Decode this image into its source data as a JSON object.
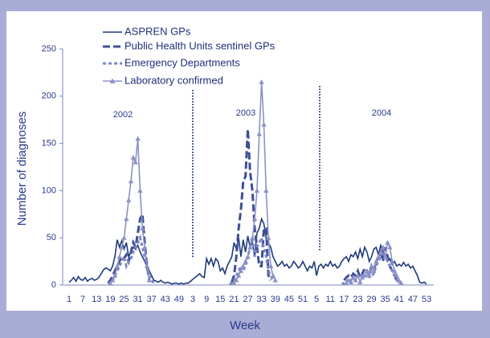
{
  "chart_data": {
    "type": "line",
    "y_label": "Number of diagnoses",
    "x_label": "Week",
    "annotations": [
      "2002",
      "2003",
      "2004"
    ],
    "ylim": [
      0,
      250
    ],
    "yticks": [
      0,
      50,
      100,
      150,
      200,
      250
    ],
    "categories": [
      "1",
      null,
      null,
      null,
      null,
      null,
      "7",
      null,
      null,
      null,
      null,
      null,
      "13",
      null,
      null,
      null,
      null,
      null,
      "19",
      null,
      null,
      null,
      null,
      null,
      "25",
      null,
      null,
      null,
      null,
      null,
      "31",
      null,
      null,
      null,
      null,
      null,
      "37",
      null,
      null,
      null,
      null,
      null,
      "43",
      null,
      null,
      null,
      null,
      null,
      "49",
      null,
      null,
      null,
      null,
      null,
      "3",
      null,
      null,
      null,
      null,
      null,
      "9",
      null,
      null,
      null,
      null,
      null,
      "15",
      null,
      null,
      null,
      null,
      null,
      "21",
      null,
      null,
      null,
      null,
      null,
      "27",
      null,
      null,
      null,
      null,
      null,
      "33",
      null,
      null,
      null,
      null,
      null,
      "39",
      null,
      null,
      null,
      null,
      null,
      "45",
      null,
      null,
      null,
      null,
      null,
      "51",
      null,
      null,
      null,
      null,
      null,
      "5",
      null,
      null,
      null,
      null,
      null,
      "11",
      null,
      null,
      null,
      null,
      null,
      "17",
      null,
      null,
      null,
      null,
      null,
      "23",
      null,
      null,
      null,
      null,
      null,
      "29",
      null,
      null,
      null,
      null,
      null,
      "35",
      null,
      null,
      null,
      null,
      null,
      "41",
      null,
      null,
      null,
      null,
      null,
      "47",
      null,
      null,
      null,
      null,
      null,
      "53"
    ],
    "series": [
      {
        "name": "ASPREN GPs",
        "color": "#1f3a7a",
        "dash": "solid",
        "values": [
          3,
          5,
          8,
          4,
          9,
          6,
          5,
          8,
          4,
          6,
          7,
          5,
          6,
          8,
          12,
          16,
          18,
          17,
          15,
          20,
          30,
          48,
          40,
          47,
          38,
          45,
          30,
          35,
          40,
          38,
          42,
          35,
          30,
          25,
          20,
          15,
          10,
          5,
          4,
          3,
          5,
          3,
          2,
          3,
          2,
          1,
          2,
          2,
          1,
          2,
          1,
          2,
          2,
          4,
          6,
          8,
          10,
          12,
          9,
          8,
          28,
          22,
          28,
          20,
          28,
          25,
          15,
          18,
          12,
          20,
          25,
          30,
          45,
          38,
          50,
          30,
          48,
          35,
          52,
          40,
          45,
          30,
          55,
          60,
          70,
          65,
          50,
          45,
          40,
          30,
          25,
          20,
          22,
          25,
          20,
          22,
          18,
          20,
          25,
          22,
          18,
          20,
          25,
          20,
          15,
          20,
          18,
          25,
          10,
          20,
          22,
          18,
          22,
          20,
          25,
          20,
          22,
          18,
          20,
          25,
          28,
          30,
          25,
          32,
          30,
          35,
          28,
          38,
          30,
          40,
          35,
          25,
          30,
          38,
          40,
          32,
          42,
          35,
          30,
          25,
          28,
          22,
          25,
          20,
          22,
          20,
          24,
          20,
          22,
          18,
          20,
          15,
          10,
          3,
          2,
          3,
          1
        ]
      },
      {
        "name": "Public Health Units sentinel GPs",
        "color": "#3e4f96",
        "dash": "dashed",
        "values": [
          null,
          null,
          null,
          null,
          null,
          null,
          null,
          null,
          null,
          null,
          null,
          null,
          null,
          null,
          null,
          null,
          null,
          2,
          5,
          10,
          15,
          20,
          25,
          30,
          28,
          32,
          25,
          35,
          45,
          40,
          55,
          70,
          75,
          45,
          20,
          5,
          null,
          null,
          null,
          null,
          null,
          null,
          null,
          null,
          null,
          null,
          null,
          null,
          null,
          null,
          null,
          null,
          null,
          null,
          null,
          null,
          null,
          null,
          null,
          null,
          null,
          null,
          null,
          null,
          null,
          null,
          null,
          null,
          null,
          null,
          null,
          3,
          10,
          30,
          60,
          80,
          110,
          115,
          165,
          120,
          100,
          60,
          40,
          20,
          20,
          60,
          60,
          10,
          5,
          null,
          null,
          null,
          null,
          null,
          null,
          null,
          null,
          null,
          null,
          null,
          null,
          null,
          null,
          null,
          null,
          null,
          null,
          null,
          null,
          null,
          null,
          null,
          null,
          null,
          null,
          null,
          null,
          null,
          null,
          null,
          5,
          8,
          10,
          8,
          12,
          10,
          15,
          8,
          12,
          18,
          15,
          10,
          20,
          15,
          25,
          30,
          35,
          25,
          40,
          30,
          20,
          15,
          10,
          5,
          2,
          null,
          null,
          null,
          null,
          null,
          null,
          null,
          null,
          null,
          null,
          null,
          null
        ]
      },
      {
        "name": "Emergency Departments",
        "color": "#7d87c4",
        "dash": "dotted",
        "values": [
          null,
          null,
          null,
          null,
          null,
          null,
          null,
          null,
          null,
          null,
          null,
          null,
          null,
          null,
          null,
          null,
          null,
          1,
          2,
          5,
          10,
          15,
          20,
          25,
          30,
          20,
          25,
          28,
          35,
          40,
          45,
          50,
          40,
          30,
          20,
          10,
          5,
          2,
          null,
          null,
          null,
          null,
          null,
          null,
          null,
          null,
          null,
          null,
          null,
          null,
          null,
          null,
          null,
          null,
          null,
          null,
          null,
          null,
          null,
          null,
          null,
          null,
          null,
          null,
          null,
          null,
          null,
          null,
          null,
          null,
          1,
          2,
          5,
          10,
          15,
          20,
          15,
          20,
          30,
          40,
          50,
          30,
          40,
          45,
          50,
          40,
          30,
          15,
          10,
          5,
          null,
          null,
          null,
          null,
          null,
          null,
          null,
          null,
          null,
          null,
          null,
          null,
          null,
          null,
          null,
          null,
          null,
          null,
          null,
          null,
          null,
          null,
          null,
          null,
          null,
          null,
          null,
          null,
          null,
          1,
          2,
          5,
          3,
          5,
          8,
          5,
          10,
          8,
          12,
          10,
          8,
          15,
          10,
          12,
          20,
          25,
          30,
          35,
          30,
          25,
          20,
          15,
          10,
          5,
          3,
          1,
          null,
          null,
          null,
          null,
          null,
          null,
          null,
          null,
          null,
          null,
          null
        ]
      },
      {
        "name": "Laboratory confirmed",
        "color": "#8c91c6",
        "dash": "solid",
        "marker": "triangle",
        "values": [
          null,
          null,
          null,
          null,
          null,
          null,
          null,
          null,
          null,
          null,
          null,
          null,
          null,
          null,
          null,
          null,
          null,
          null,
          2,
          5,
          10,
          20,
          30,
          40,
          50,
          70,
          90,
          110,
          135,
          130,
          155,
          100,
          60,
          40,
          20,
          5,
          null,
          null,
          null,
          null,
          null,
          null,
          null,
          null,
          null,
          null,
          null,
          null,
          null,
          null,
          null,
          null,
          null,
          null,
          null,
          null,
          null,
          null,
          null,
          null,
          null,
          null,
          null,
          null,
          null,
          null,
          null,
          null,
          null,
          null,
          null,
          null,
          2,
          5,
          10,
          15,
          20,
          25,
          30,
          40,
          50,
          70,
          100,
          160,
          215,
          170,
          100,
          50,
          20,
          10,
          5,
          null,
          null,
          null,
          null,
          null,
          null,
          null,
          null,
          null,
          null,
          null,
          null,
          null,
          null,
          null,
          null,
          null,
          null,
          null,
          null,
          null,
          null,
          null,
          null,
          null,
          null,
          null,
          null,
          null,
          null,
          2,
          5,
          3,
          8,
          5,
          10,
          3,
          8,
          10,
          15,
          10,
          20,
          15,
          25,
          30,
          35,
          40,
          30,
          45,
          40,
          25,
          15,
          10,
          5,
          2,
          null,
          null,
          null,
          null,
          null,
          null,
          null,
          null,
          null,
          null,
          null
        ]
      }
    ]
  }
}
